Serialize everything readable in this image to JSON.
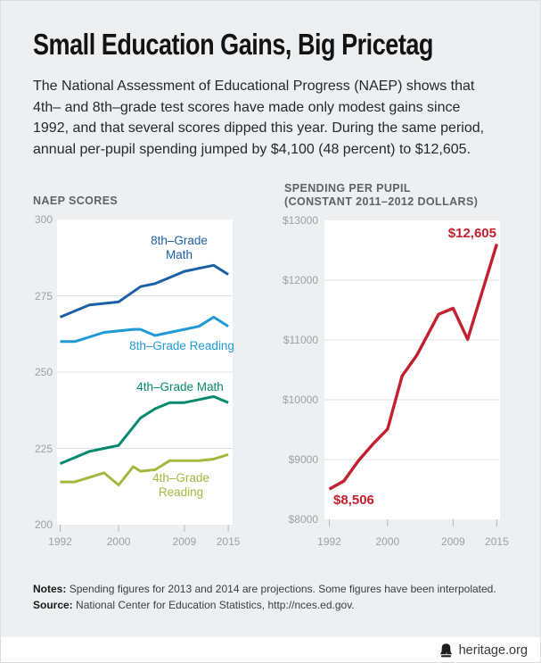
{
  "page": {
    "title": "Small Education Gains, Big Pricetag",
    "subtitle_lines": [
      "The National Assessment of Educational Progress (NAEP) shows that",
      "4th– and 8th–grade test scores have made only modest gains since",
      "1992, and that several scores dipped this year. During the same period,",
      "annual per-pupil spending jumped by $4,100 (48 percent) to $12,605."
    ]
  },
  "colors": {
    "background": "#edeff0",
    "plot_background": "#ffffff",
    "gridline": "#dddfe1",
    "tick": "#b5b9bc",
    "axis_text": "#9ba1a6",
    "header_text": "#5d6368",
    "dark_blue": "#1b5fa5",
    "light_blue": "#1f9ad5",
    "teal": "#058a6f",
    "olive": "#a4b83e",
    "red": "#c2202f"
  },
  "chart_data": [
    {
      "type": "line",
      "title": "NAEP SCORES",
      "xlim": [
        1992,
        2015
      ],
      "ylim": [
        200,
        300
      ],
      "grid": true,
      "legend_position": "inline-labels",
      "x_ticks": [
        1992,
        2000,
        2009,
        2015
      ],
      "x_tick_labels": [
        "1992",
        "2000",
        "2009",
        "2015"
      ],
      "y_ticks": [
        300,
        275,
        250,
        225,
        200
      ],
      "y_tick_labels": [
        "300",
        "275",
        "250",
        "225",
        "200"
      ],
      "series": [
        {
          "name": "8th-Grade Math",
          "label": "8th–Grade\nMath",
          "color": "#1b5fa5",
          "points": [
            [
              1992,
              268
            ],
            [
              1996,
              272
            ],
            [
              2000,
              273
            ],
            [
              2003,
              278
            ],
            [
              2005,
              279
            ],
            [
              2007,
              281
            ],
            [
              2009,
              283
            ],
            [
              2011,
              284
            ],
            [
              2013,
              285
            ],
            [
              2015,
              282
            ]
          ]
        },
        {
          "name": "8th-Grade Reading",
          "label": "8th–Grade Reading",
          "color": "#1f9ad5",
          "points": [
            [
              1992,
              260
            ],
            [
              1994,
              260
            ],
            [
              1998,
              263
            ],
            [
              2002,
              264
            ],
            [
              2003,
              264
            ],
            [
              2005,
              262
            ],
            [
              2007,
              263
            ],
            [
              2009,
              264
            ],
            [
              2011,
              265
            ],
            [
              2013,
              268
            ],
            [
              2015,
              265
            ]
          ]
        },
        {
          "name": "4th-Grade Math",
          "label": "4th–Grade Math",
          "color": "#058a6f",
          "points": [
            [
              1992,
              220
            ],
            [
              1996,
              224
            ],
            [
              2000,
              226
            ],
            [
              2003,
              235
            ],
            [
              2005,
              238
            ],
            [
              2007,
              240
            ],
            [
              2009,
              240
            ],
            [
              2011,
              241
            ],
            [
              2013,
              242
            ],
            [
              2015,
              240
            ]
          ]
        },
        {
          "name": "4th-Grade Reading",
          "label": "4th–Grade\nReading",
          "color": "#a4b83e",
          "points": [
            [
              1992,
              214
            ],
            [
              1994,
              214
            ],
            [
              1998,
              217
            ],
            [
              2000,
              213
            ],
            [
              2002,
              219
            ],
            [
              2003,
              217.5
            ],
            [
              2005,
              218
            ],
            [
              2007,
              221
            ],
            [
              2009,
              221
            ],
            [
              2011,
              221
            ],
            [
              2013,
              221.5
            ],
            [
              2015,
              223
            ]
          ]
        }
      ]
    },
    {
      "type": "line",
      "title": "SPENDING PER PUPIL (CONSTANT 2011–2012 DOLLARS)",
      "title_lines": [
        "SPENDING PER PUPIL",
        "(CONSTANT 2011–2012 DOLLARS)"
      ],
      "xlim": [
        1992,
        2015
      ],
      "ylim": [
        8000,
        13000
      ],
      "grid": true,
      "x_ticks": [
        1992,
        2000,
        2009,
        2015
      ],
      "x_tick_labels": [
        "1992",
        "2000",
        "2009",
        "2015"
      ],
      "y_ticks": [
        13000,
        12000,
        11000,
        10000,
        9000,
        8000
      ],
      "y_tick_labels": [
        "$13000",
        "$12000",
        "$11000",
        "$10000",
        "$9000",
        "$8000"
      ],
      "series": [
        {
          "name": "Spending per pupil",
          "label": null,
          "color": "#c2202f",
          "points": [
            [
              1992,
              8506
            ],
            [
              1994,
              8640
            ],
            [
              1996,
              8980
            ],
            [
              1998,
              9260
            ],
            [
              2000,
              9510
            ],
            [
              2002,
              10400
            ],
            [
              2004,
              10740
            ],
            [
              2007,
              11430
            ],
            [
              2009,
              11530
            ],
            [
              2011,
              11010
            ],
            [
              2015,
              12605
            ]
          ]
        }
      ],
      "annotations": [
        {
          "text": "$8,506",
          "year": 1992,
          "value": 8506
        },
        {
          "text": "$12,605",
          "year": 2015,
          "value": 12605
        }
      ]
    }
  ],
  "notes": {
    "notes_label": "Notes:",
    "notes_text": "Spending figures for 2013 and 2014 are projections. Some figures have been interpolated.",
    "source_label": "Source:",
    "source_text": "National Center for Education Statistics, http://nces.ed.gov."
  },
  "footer": {
    "brand": "heritage.org",
    "logo_icon": "liberty-bell-icon"
  }
}
